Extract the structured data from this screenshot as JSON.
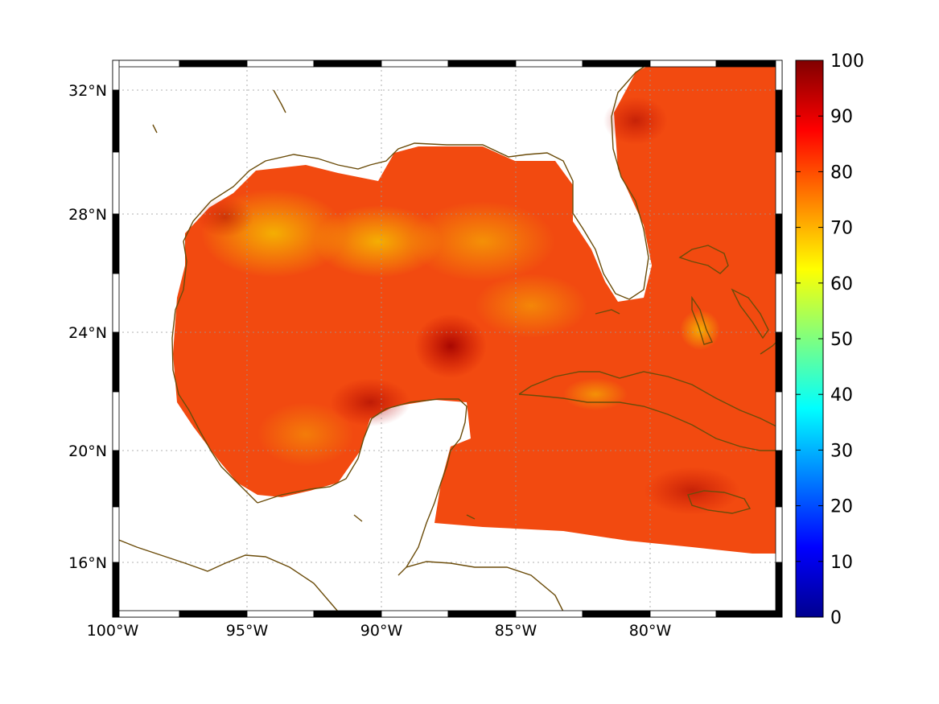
{
  "map": {
    "lon_ticks": [
      "100°W",
      "95°W",
      "90°W",
      "85°W",
      "80°W"
    ],
    "lat_ticks": [
      "32°N",
      "28°N",
      "24°N",
      "20°N",
      "16°N"
    ],
    "colorbar_ticks": [
      "100",
      "90",
      "80",
      "70",
      "60",
      "50",
      "40",
      "30",
      "20",
      "10",
      "0"
    ],
    "colormap": "jet",
    "coastline_color": "#6b4c0a",
    "gridlines": "dotted"
  }
}
